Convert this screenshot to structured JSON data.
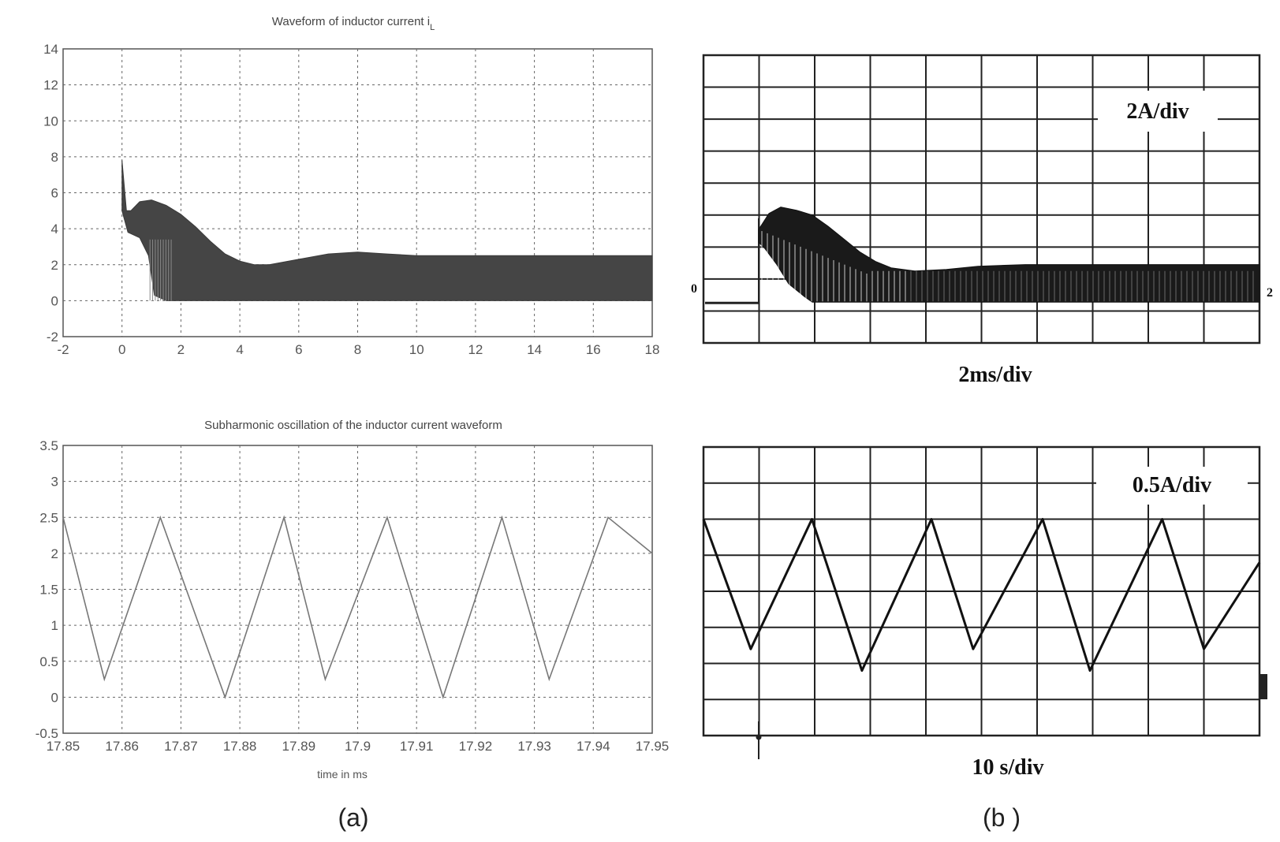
{
  "chart_data": [
    {
      "type": "area",
      "title": "Waveform of inductor current i",
      "title_sub": "L",
      "xlim": [
        -2,
        18
      ],
      "ylim": [
        -2,
        14
      ],
      "x_ticks": [
        "-2",
        "0",
        "2",
        "4",
        "6",
        "8",
        "10",
        "12",
        "14",
        "16",
        "18"
      ],
      "y_ticks": [
        "-2",
        "0",
        "2",
        "4",
        "6",
        "8",
        "10",
        "12",
        "14"
      ],
      "grid": true,
      "series": [
        {
          "envelope_upper": [
            [
              0,
              7.8
            ],
            [
              0.15,
              5.0
            ],
            [
              0.3,
              5.0
            ],
            [
              0.6,
              5.5
            ],
            [
              1.0,
              5.6
            ],
            [
              1.5,
              5.3
            ],
            [
              2.0,
              4.8
            ],
            [
              2.5,
              4.1
            ],
            [
              3.0,
              3.3
            ],
            [
              3.5,
              2.6
            ],
            [
              4.0,
              2.2
            ],
            [
              4.5,
              2.0
            ],
            [
              5.0,
              2.0
            ],
            [
              6.0,
              2.3
            ],
            [
              7.0,
              2.6
            ],
            [
              8.0,
              2.7
            ],
            [
              9.0,
              2.6
            ],
            [
              10.0,
              2.5
            ],
            [
              12.0,
              2.5
            ],
            [
              14.0,
              2.5
            ],
            [
              16.0,
              2.5
            ],
            [
              18.0,
              2.5
            ]
          ],
          "envelope_lower": [
            [
              0,
              5.0
            ],
            [
              0.2,
              3.8
            ],
            [
              0.6,
              3.5
            ],
            [
              0.9,
              2.5
            ],
            [
              1.1,
              0.3
            ],
            [
              1.5,
              0.0
            ],
            [
              2.0,
              0.0
            ],
            [
              18.0,
              0.0
            ]
          ]
        }
      ]
    },
    {
      "type": "line",
      "title": "Subharmonic oscillation of the inductor current waveform",
      "xlabel": "time in ms",
      "xlim": [
        17.85,
        17.95
      ],
      "ylim": [
        -0.5,
        3.5
      ],
      "x_ticks": [
        "17.85",
        "17.86",
        "17.87",
        "17.88",
        "17.89",
        "17.9",
        "17.91",
        "17.92",
        "17.93",
        "17.94",
        "17.95"
      ],
      "y_ticks": [
        "-0.5",
        "0",
        "0.5",
        "1",
        "1.5",
        "2",
        "2.5",
        "3",
        "3.5"
      ],
      "grid": true,
      "series": [
        {
          "points": [
            [
              17.85,
              2.5
            ],
            [
              17.857,
              0.25
            ],
            [
              17.8665,
              2.5
            ],
            [
              17.8775,
              0.0
            ],
            [
              17.8875,
              2.5
            ],
            [
              17.8945,
              0.25
            ],
            [
              17.905,
              2.5
            ],
            [
              17.9145,
              0.0
            ],
            [
              17.9245,
              2.5
            ],
            [
              17.9325,
              0.25
            ],
            [
              17.9425,
              2.5
            ],
            [
              17.95,
              2.0
            ]
          ]
        }
      ]
    },
    {
      "type": "line",
      "scale_label": "2A/div",
      "time_label": "2ms/div",
      "left_marker": "0",
      "right_marker": "2",
      "divisions": {
        "x": 10,
        "y": 9
      }
    },
    {
      "type": "line",
      "scale_label": "0.5A/div",
      "time_label": "10  s/div",
      "divisions": {
        "x": 10,
        "y": 8
      },
      "series": [
        {
          "points": [
            [
              0,
              6.0
            ],
            [
              0.85,
              2.4
            ],
            [
              1.95,
              6.0
            ],
            [
              2.85,
              1.8
            ],
            [
              4.1,
              6.0
            ],
            [
              4.85,
              2.4
            ],
            [
              6.1,
              6.0
            ],
            [
              6.95,
              1.8
            ],
            [
              8.25,
              6.0
            ],
            [
              9.0,
              2.4
            ],
            [
              10.0,
              4.8
            ]
          ]
        }
      ]
    }
  ],
  "labels": {
    "panel_a": "(a)",
    "panel_b": "(b )"
  }
}
